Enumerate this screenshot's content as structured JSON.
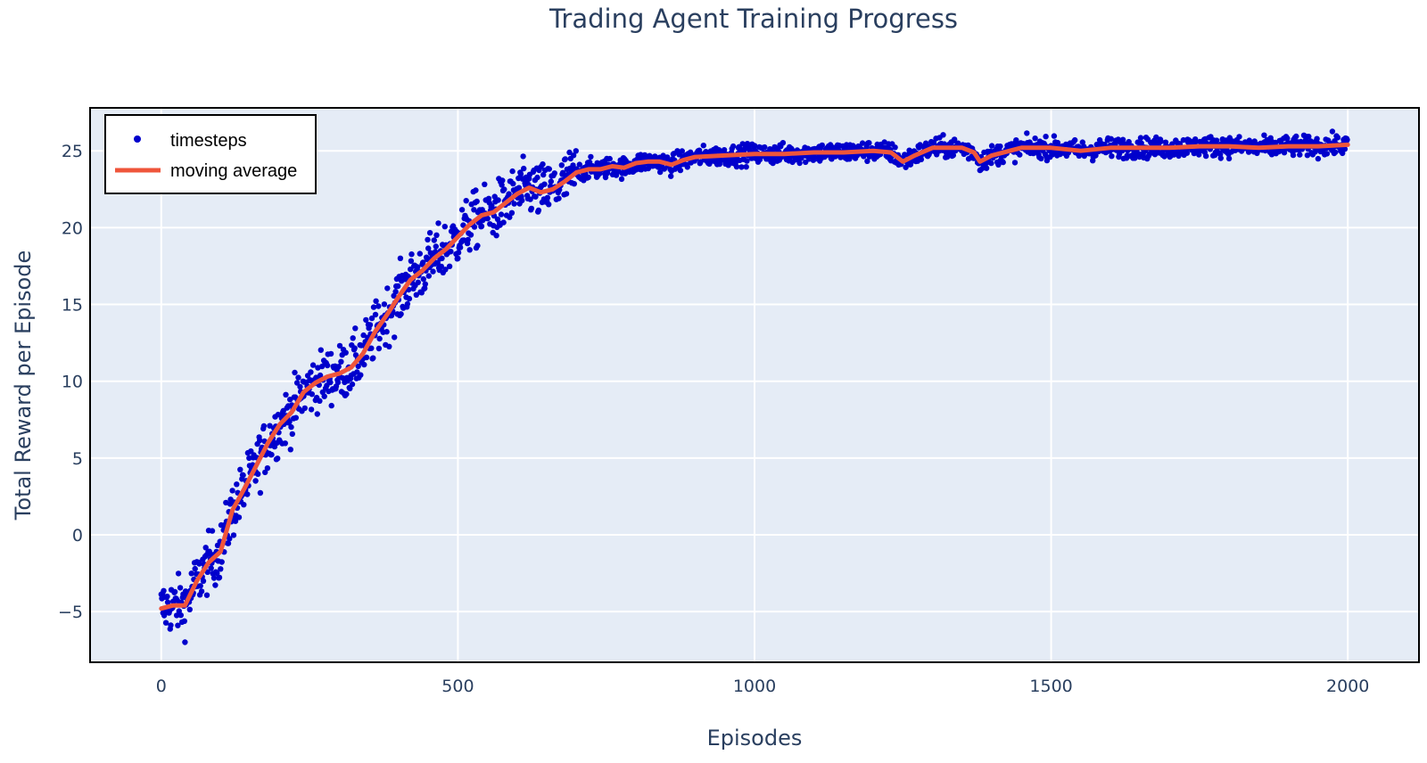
{
  "colors": {
    "plot_background": "#e5ecf6",
    "grid": "#ffffff",
    "markers": "#0000cc",
    "moving_average": "#ef553b",
    "text": "#2a3f5f"
  },
  "chart_data": {
    "type": "scatter",
    "title": "Trading Agent Training Progress",
    "xlabel": "Episodes",
    "ylabel": "Total Reward per Episode",
    "xlim": [
      -120,
      2120
    ],
    "ylim": [
      -8.3,
      27.8
    ],
    "xticks": [
      0,
      500,
      1000,
      1500,
      2000
    ],
    "yticks": [
      -5,
      0,
      5,
      10,
      15,
      20,
      25
    ],
    "xtick_labels": [
      "0",
      "500",
      "1000",
      "1500",
      "2000"
    ],
    "ytick_labels": [
      "−5",
      "0",
      "5",
      "10",
      "15",
      "20",
      "25"
    ],
    "grid": true,
    "legend": {
      "position": "top-left",
      "box": true
    },
    "series": [
      {
        "name": "timesteps",
        "mode": "markers",
        "episodes": 2000,
        "noise_amplitude": 0.65,
        "follows": "moving average"
      },
      {
        "name": "moving average",
        "mode": "line",
        "x": [
          0,
          20,
          40,
          60,
          80,
          100,
          120,
          140,
          160,
          180,
          200,
          220,
          240,
          260,
          280,
          300,
          320,
          340,
          360,
          380,
          400,
          420,
          440,
          460,
          480,
          500,
          520,
          540,
          560,
          580,
          600,
          620,
          640,
          660,
          680,
          700,
          720,
          740,
          760,
          780,
          800,
          820,
          840,
          860,
          880,
          900,
          950,
          1000,
          1050,
          1100,
          1150,
          1200,
          1230,
          1250,
          1270,
          1300,
          1350,
          1370,
          1380,
          1400,
          1450,
          1500,
          1550,
          1600,
          1650,
          1700,
          1750,
          1800,
          1850,
          1900,
          1950,
          2000
        ],
        "y": [
          -4.8,
          -4.6,
          -4.6,
          -3.0,
          -1.8,
          -1.1,
          1.6,
          3.0,
          4.5,
          6.0,
          7.2,
          8.0,
          9.3,
          9.9,
          10.3,
          10.5,
          10.9,
          11.8,
          13.2,
          14.3,
          15.5,
          16.6,
          17.2,
          18.0,
          18.6,
          19.4,
          20.2,
          20.8,
          21.0,
          21.6,
          22.2,
          22.6,
          22.3,
          22.5,
          23.0,
          23.6,
          23.8,
          23.8,
          24.0,
          23.9,
          24.2,
          24.3,
          24.3,
          24.1,
          24.4,
          24.6,
          24.7,
          24.8,
          24.8,
          24.9,
          24.9,
          25.0,
          24.9,
          24.3,
          24.7,
          25.2,
          25.2,
          24.9,
          24.3,
          24.7,
          25.2,
          25.2,
          25.0,
          25.2,
          25.2,
          25.2,
          25.3,
          25.3,
          25.2,
          25.3,
          25.3,
          25.4
        ]
      }
    ]
  }
}
